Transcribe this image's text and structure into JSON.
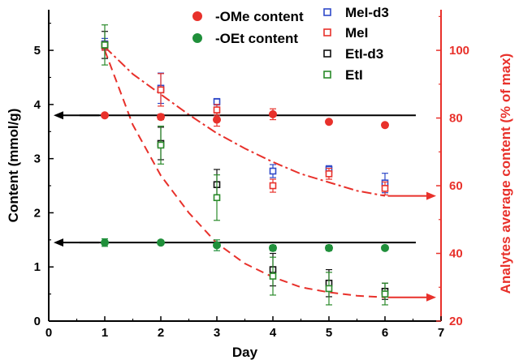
{
  "chart_data": {
    "type": "scatter",
    "xlabel": "Day",
    "ylabel": "Content (mmol/g)",
    "y2label": "Analytes average content (% of max)",
    "xlim": [
      0,
      7
    ],
    "ylim": [
      0,
      5.75
    ],
    "y2lim": [
      20,
      112
    ],
    "x_ticks": [
      "0",
      "1",
      "2",
      "3",
      "4",
      "5",
      "6",
      "7"
    ],
    "y_ticks": [
      "0",
      "1",
      "2",
      "3",
      "4",
      "5"
    ],
    "y2_ticks": [
      "20",
      "40",
      "60",
      "80",
      "100"
    ],
    "legend_position": "top",
    "colors": {
      "ome": "#e8312b",
      "oet": "#1f8f3a",
      "mei_d3": "#2f49c9",
      "mei": "#e8312b",
      "eti_d3": "#111111",
      "eti": "#2a8a2a",
      "secondary_axis": "#e8312b"
    },
    "series": [
      {
        "name": "-OMe content",
        "marker": "filled-circle",
        "color": "#e8312b",
        "x": [
          1,
          2,
          3,
          4,
          5,
          6
        ],
        "y": [
          3.8,
          3.77,
          3.72,
          3.82,
          3.68,
          3.62
        ],
        "err": [
          0.03,
          0.05,
          0.12,
          0.1,
          0.03,
          0.04
        ]
      },
      {
        "name": "-OEt content",
        "marker": "filled-circle",
        "color": "#1f8f3a",
        "x": [
          1,
          2,
          3,
          4,
          5,
          6
        ],
        "y": [
          1.45,
          1.45,
          1.4,
          1.35,
          1.35,
          1.35
        ],
        "err": [
          0.07,
          0.03,
          0.1,
          0.05,
          0.05,
          0.03
        ]
      },
      {
        "name": "MeI-d3",
        "marker": "open-square",
        "color": "#2f49c9",
        "x": [
          1,
          2,
          3,
          4,
          5,
          6
        ],
        "y": [
          5.12,
          4.3,
          4.05,
          2.77,
          2.8,
          2.55
        ],
        "err": [
          0.1,
          0.28,
          0.06,
          0.12,
          0.07,
          0.18
        ]
      },
      {
        "name": "MeI",
        "marker": "open-square",
        "color": "#e8312b",
        "x": [
          1,
          2,
          3,
          4,
          5,
          6
        ],
        "y": [
          5.08,
          4.27,
          3.9,
          2.5,
          2.72,
          2.45
        ],
        "err": [
          0.08,
          0.3,
          0.1,
          0.12,
          0.1,
          0.12
        ]
      },
      {
        "name": "EtI-d3",
        "marker": "open-square",
        "color": "#111111",
        "x": [
          1,
          2,
          3,
          4,
          5,
          6
        ],
        "y": [
          5.1,
          3.28,
          2.52,
          0.95,
          0.7,
          0.55
        ],
        "err": [
          0.25,
          0.3,
          0.28,
          0.3,
          0.25,
          0.15
        ]
      },
      {
        "name": "EtI",
        "marker": "open-square",
        "color": "#2a8a2a",
        "x": [
          1,
          2,
          3,
          4,
          5,
          6
        ],
        "y": [
          5.1,
          3.25,
          2.28,
          0.83,
          0.6,
          0.5
        ],
        "err": [
          0.37,
          0.35,
          0.42,
          0.35,
          0.3,
          0.2
        ]
      }
    ],
    "trend_lines": [
      {
        "style": "dash-dot",
        "color": "#e8312b",
        "axis": "secondary",
        "x": [
          1,
          1.5,
          2,
          2.5,
          3,
          3.5,
          4,
          4.5,
          5,
          5.5,
          6
        ],
        "y": [
          101,
          93,
          87,
          81,
          75.5,
          71,
          67,
          63.5,
          61,
          58.5,
          57
        ]
      },
      {
        "style": "dashed",
        "color": "#e8312b",
        "axis": "secondary",
        "x": [
          1,
          1.5,
          2,
          2.5,
          3,
          3.5,
          4,
          4.5,
          5,
          5.5,
          6
        ],
        "y": [
          100,
          78,
          63,
          52,
          43,
          37,
          33,
          30,
          28.5,
          27.5,
          27
        ]
      }
    ],
    "reference_lines": [
      {
        "y": 3.8,
        "axis": "primary",
        "color": "#000000"
      },
      {
        "y": 1.45,
        "axis": "primary",
        "color": "#000000"
      }
    ],
    "arrows": [
      {
        "direction": "left",
        "axis": "primary",
        "y": 3.8,
        "color": "#000000"
      },
      {
        "direction": "left",
        "axis": "primary",
        "y": 1.45,
        "color": "#000000"
      },
      {
        "direction": "right",
        "axis": "secondary",
        "y": 57,
        "color": "#e8312b"
      },
      {
        "direction": "right",
        "axis": "secondary",
        "y": 27,
        "color": "#e8312b"
      }
    ]
  }
}
